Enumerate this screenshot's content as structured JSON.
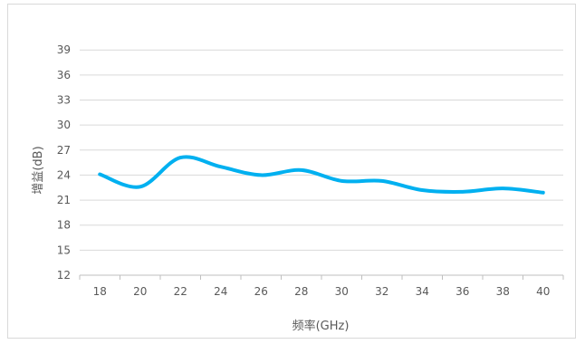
{
  "chart_data": {
    "type": "line",
    "title": "",
    "xlabel": "频率(GHz)",
    "ylabel": "增益(dB)",
    "x": [
      18,
      20,
      22,
      24,
      26,
      28,
      30,
      32,
      34,
      36,
      38,
      40
    ],
    "x_ticks": [
      "18",
      "20",
      "22",
      "24",
      "26",
      "28",
      "30",
      "32",
      "34",
      "36",
      "38",
      "40"
    ],
    "y_ticks": [
      "12",
      "15",
      "18",
      "21",
      "24",
      "27",
      "30",
      "33",
      "36",
      "39"
    ],
    "ylim": [
      12,
      40
    ],
    "grid": "horizontal",
    "smooth": true,
    "series": [
      {
        "name": "",
        "color": "#00b0f0",
        "values": [
          24.1,
          22.6,
          26.1,
          25.0,
          24.0,
          24.6,
          23.3,
          23.3,
          22.2,
          22.0,
          22.4,
          21.9
        ]
      }
    ]
  }
}
